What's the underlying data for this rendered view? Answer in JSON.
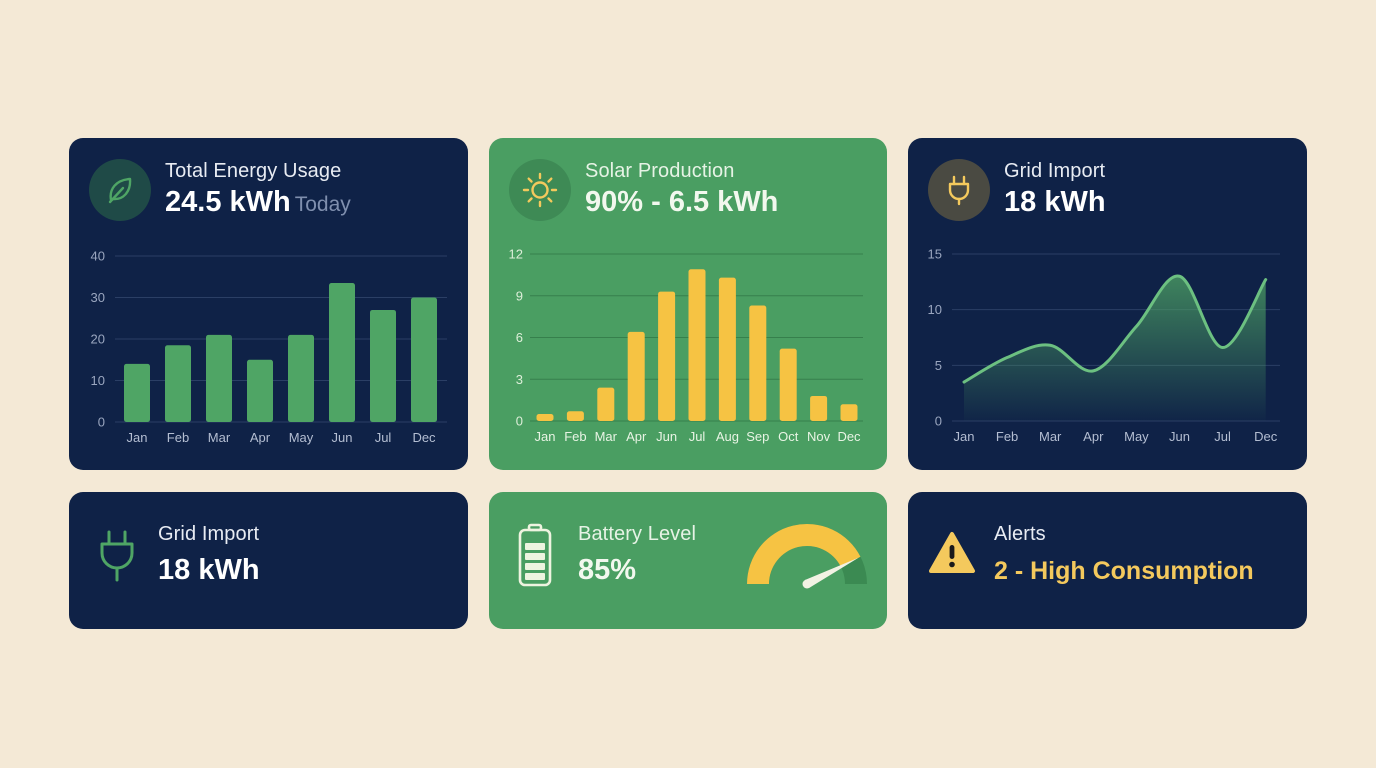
{
  "colors": {
    "background": "#F4E9D6",
    "navy_card": "#0F2247",
    "green_card": "#4A9E62",
    "bar_green": "#4FA565",
    "bar_yellow": "#F6C343",
    "accent_yellow": "#F4C95D",
    "line_green": "#6CC081"
  },
  "cards": {
    "total_energy": {
      "icon": "leaf-icon",
      "title": "Total Energy Usage",
      "value": "24.5 kWh",
      "sub": "Today"
    },
    "solar": {
      "icon": "sun-icon",
      "title": "Solar Production",
      "value": "90% - 6.5 kWh"
    },
    "grid_chart": {
      "icon": "plug-icon",
      "title": "Grid Import",
      "value": "18 kWh"
    },
    "grid_small": {
      "icon": "plug-icon",
      "title": "Grid Import",
      "value": "18 kWh"
    },
    "battery": {
      "icon": "battery-icon",
      "title": "Battery Level",
      "value": "85%",
      "gauge_percent": 85
    },
    "alerts": {
      "icon": "warning-icon",
      "title": "Alerts",
      "value": "2 - High Consumption"
    }
  },
  "chart_data": [
    {
      "id": "total_energy_chart",
      "type": "bar",
      "title": "Total Energy Usage",
      "categories": [
        "Jan",
        "Feb",
        "Mar",
        "Apr",
        "May",
        "Jun",
        "Jul",
        "Dec"
      ],
      "values": [
        14,
        18.5,
        21,
        15,
        21,
        33.5,
        27,
        30
      ],
      "yticks": [
        0,
        10,
        20,
        30,
        40
      ],
      "ylim": [
        0,
        40
      ],
      "grid": true,
      "xlabel": "",
      "ylabel": ""
    },
    {
      "id": "solar_chart",
      "type": "bar",
      "title": "Solar Production",
      "categories": [
        "Jan",
        "Feb",
        "Mar",
        "Apr",
        "Jun",
        "Jul",
        "Aug",
        "Sep",
        "Oct",
        "Nov",
        "Dec"
      ],
      "values": [
        0.5,
        0.7,
        2.4,
        6.4,
        9.3,
        10.9,
        10.3,
        8.3,
        5.2,
        1.8,
        1.2
      ],
      "yticks": [
        0,
        3,
        6,
        9,
        12
      ],
      "ylim": [
        0,
        12
      ],
      "grid": true,
      "xlabel": "",
      "ylabel": ""
    },
    {
      "id": "grid_import_chart",
      "type": "area",
      "title": "Grid Import",
      "categories": [
        "Jan",
        "Feb",
        "Mar",
        "Apr",
        "May",
        "Jun",
        "Jul",
        "Dec"
      ],
      "values": [
        3.5,
        5.7,
        6.8,
        4.5,
        8.5,
        13,
        6.6,
        12.7
      ],
      "yticks": [
        0,
        5,
        10,
        15
      ],
      "ylim": [
        0,
        15
      ],
      "grid": true,
      "xlabel": "",
      "ylabel": ""
    }
  ]
}
